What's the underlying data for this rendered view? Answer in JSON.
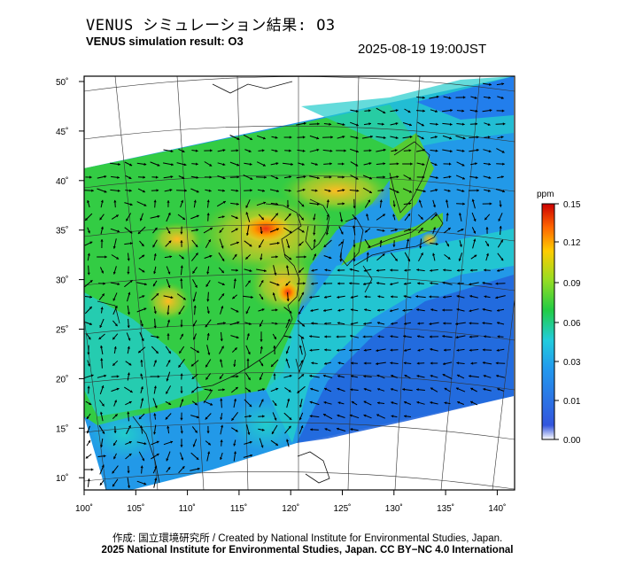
{
  "title_jp": "VENUS シミュレーション結果: O3",
  "title_en": "VENUS simulation result: O3",
  "timestamp": "2025-08-19 19:00JST",
  "map": {
    "lat_ticks": [
      "50˚",
      "45˚",
      "40˚",
      "35˚",
      "30˚",
      "25˚",
      "20˚",
      "15˚",
      "10˚"
    ],
    "lon_ticks": [
      "100˚",
      "105˚",
      "110˚",
      "115˚",
      "120˚",
      "125˚",
      "130˚",
      "135˚",
      "140˚"
    ],
    "lat_values": [
      50,
      45,
      40,
      35,
      30,
      25,
      20,
      15,
      10
    ],
    "lon_values": [
      100,
      105,
      110,
      115,
      120,
      125,
      130,
      135,
      140
    ],
    "variable": "O3",
    "wind_vectors": true
  },
  "colorbar": {
    "unit": "ppm",
    "tick_labels": [
      "0.15",
      "0.12",
      "0.09",
      "0.06",
      "0.03",
      "0.01",
      "0.00"
    ],
    "colors": [
      "#ffffff",
      "#2266dd",
      "#22ccee",
      "#22cc44",
      "#66dd22",
      "#ffcc00",
      "#ff6600",
      "#cc0000"
    ]
  },
  "credits": {
    "line1": "作成: 国立環境研究所 / Created by National Institute for Environmental Studies, Japan.",
    "line2": "2025 National Institute for Environmental Studies, Japan. CC BY−NC 4.0 International"
  }
}
